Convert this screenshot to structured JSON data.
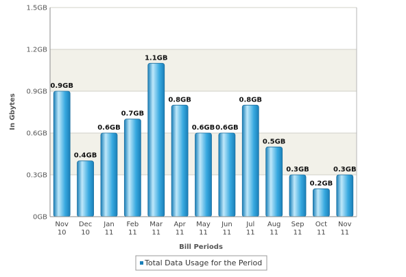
{
  "chart_data": {
    "type": "bar",
    "title": "",
    "xlabel": "Bill Periods",
    "ylabel": "In Gbytes",
    "ylim": [
      0,
      1.5
    ],
    "yticks": [
      {
        "value": 0,
        "label": "0GB"
      },
      {
        "value": 0.3,
        "label": "0.3GB"
      },
      {
        "value": 0.6,
        "label": "0.6GB"
      },
      {
        "value": 0.9,
        "label": "0.9GB"
      },
      {
        "value": 1.2,
        "label": "1.2GB"
      },
      {
        "value": 1.5,
        "label": "1.5GB"
      }
    ],
    "categories": [
      [
        "Nov",
        "10"
      ],
      [
        "Dec",
        "10"
      ],
      [
        "Jan",
        "11"
      ],
      [
        "Feb",
        "11"
      ],
      [
        "Mar",
        "11"
      ],
      [
        "Apr",
        "11"
      ],
      [
        "May",
        "11"
      ],
      [
        "Jun",
        "11"
      ],
      [
        "Jul",
        "11"
      ],
      [
        "Aug",
        "11"
      ],
      [
        "Sep",
        "11"
      ],
      [
        "Oct",
        "11"
      ],
      [
        "Nov",
        "11"
      ]
    ],
    "series": [
      {
        "name": "Total Data Usage for the Period",
        "values": [
          0.9,
          0.4,
          0.6,
          0.7,
          1.1,
          0.8,
          0.6,
          0.6,
          0.8,
          0.5,
          0.3,
          0.2,
          0.3
        ],
        "labels": [
          "0.9GB",
          "0.4GB",
          "0.6GB",
          "0.7GB",
          "1.1GB",
          "0.8GB",
          "0.6GB",
          "0.6GB",
          "0.8GB",
          "0.5GB",
          "0.3GB",
          "0.2GB",
          "0.3GB"
        ]
      }
    ],
    "grid": true,
    "legend_position": "bottom-center",
    "colors": {
      "bar": "#38a9e0",
      "bar_light": "#bfe8fa",
      "bar_dark": "#1a7fb8",
      "bar_edge": "#1d6f9e",
      "band_alt": "#f2f1e9",
      "gridline": "#d0d0c8",
      "axis": "#8a8a8a"
    }
  }
}
